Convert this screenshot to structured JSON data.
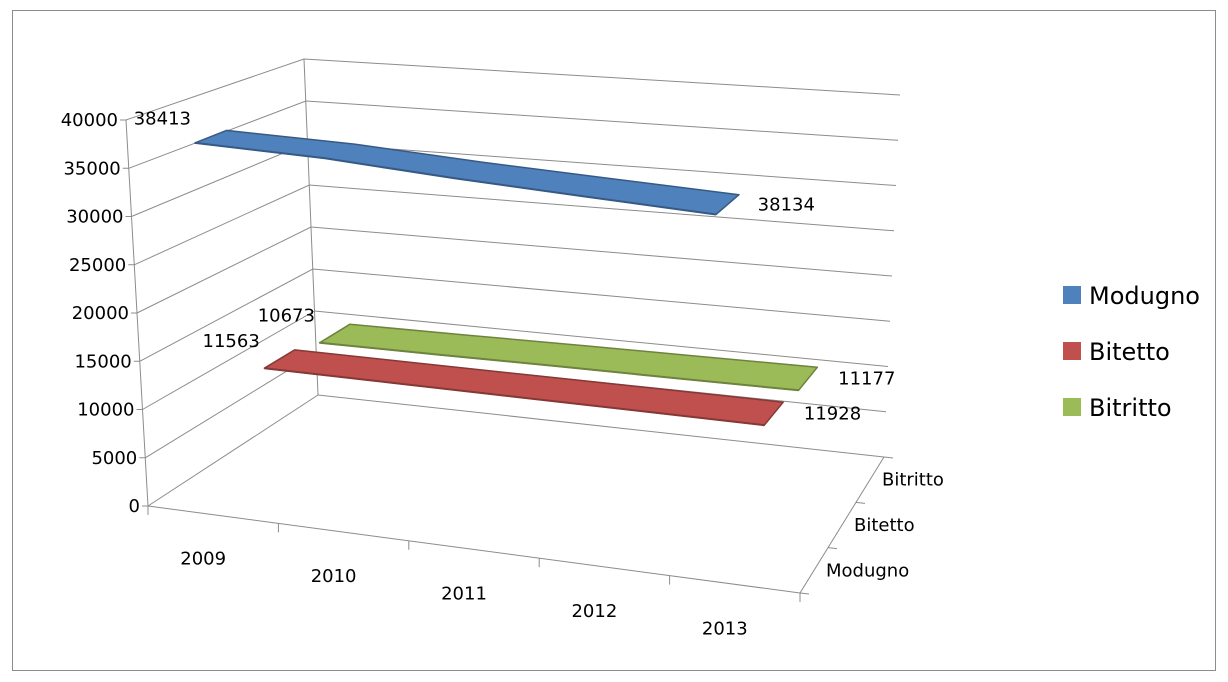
{
  "chart_data": {
    "type": "line",
    "style": "3d-ribbon",
    "title": "",
    "xlabel": "",
    "ylabel": "",
    "categories": [
      "2009",
      "2010",
      "2011",
      "2012",
      "2013"
    ],
    "depth_categories": [
      "Modugno",
      "Bitetto",
      "Bitritto"
    ],
    "ylim": [
      0,
      40000
    ],
    "yticks": [
      "0",
      "5000",
      "10000",
      "15000",
      "20000",
      "25000",
      "30000",
      "35000",
      "40000"
    ],
    "grid": true,
    "legend_position": "right",
    "series": [
      {
        "name": "Modugno",
        "values": [
          38413,
          38600,
          38300,
          38200,
          38134
        ],
        "color": "#4f81bd",
        "labels": {
          "first": "38413",
          "last": "38134"
        }
      },
      {
        "name": "Bitetto",
        "values": [
          11563,
          11650,
          11750,
          11850,
          11928
        ],
        "color": "#c0504d",
        "labels": {
          "first": "11563",
          "last": "11928"
        }
      },
      {
        "name": "Bitritto",
        "values": [
          10673,
          10800,
          10950,
          11050,
          11177
        ],
        "color": "#9bbb59",
        "labels": {
          "first": "10673",
          "last": "11177"
        }
      }
    ]
  }
}
